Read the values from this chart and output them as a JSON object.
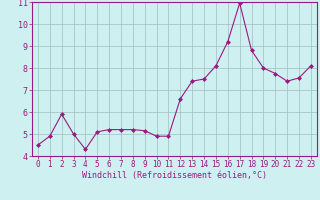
{
  "x": [
    0,
    1,
    2,
    3,
    4,
    5,
    6,
    7,
    8,
    9,
    10,
    11,
    12,
    13,
    14,
    15,
    16,
    17,
    18,
    19,
    20,
    21,
    22,
    23
  ],
  "y": [
    4.5,
    4.9,
    5.9,
    5.0,
    4.3,
    5.1,
    5.2,
    5.2,
    5.2,
    5.15,
    4.9,
    4.9,
    6.6,
    7.4,
    7.5,
    8.1,
    9.2,
    10.95,
    8.8,
    8.0,
    7.75,
    7.4,
    7.55,
    8.1
  ],
  "line_color": "#991a80",
  "marker": "D",
  "marker_size": 2.0,
  "bg_color": "#cff0f0",
  "grid_color": "#9fbfbf",
  "xlabel": "Windchill (Refroidissement éolien,°C)",
  "ylim": [
    4,
    11
  ],
  "xlim": [
    -0.5,
    23.5
  ],
  "yticks": [
    4,
    5,
    6,
    7,
    8,
    9,
    10,
    11
  ],
  "xticks": [
    0,
    1,
    2,
    3,
    4,
    5,
    6,
    7,
    8,
    9,
    10,
    11,
    12,
    13,
    14,
    15,
    16,
    17,
    18,
    19,
    20,
    21,
    22,
    23
  ],
  "tick_color": "#991a80",
  "label_color": "#991a80",
  "spine_color": "#991a80",
  "tick_fontsize": 5.5,
  "xlabel_fontsize": 6.0
}
